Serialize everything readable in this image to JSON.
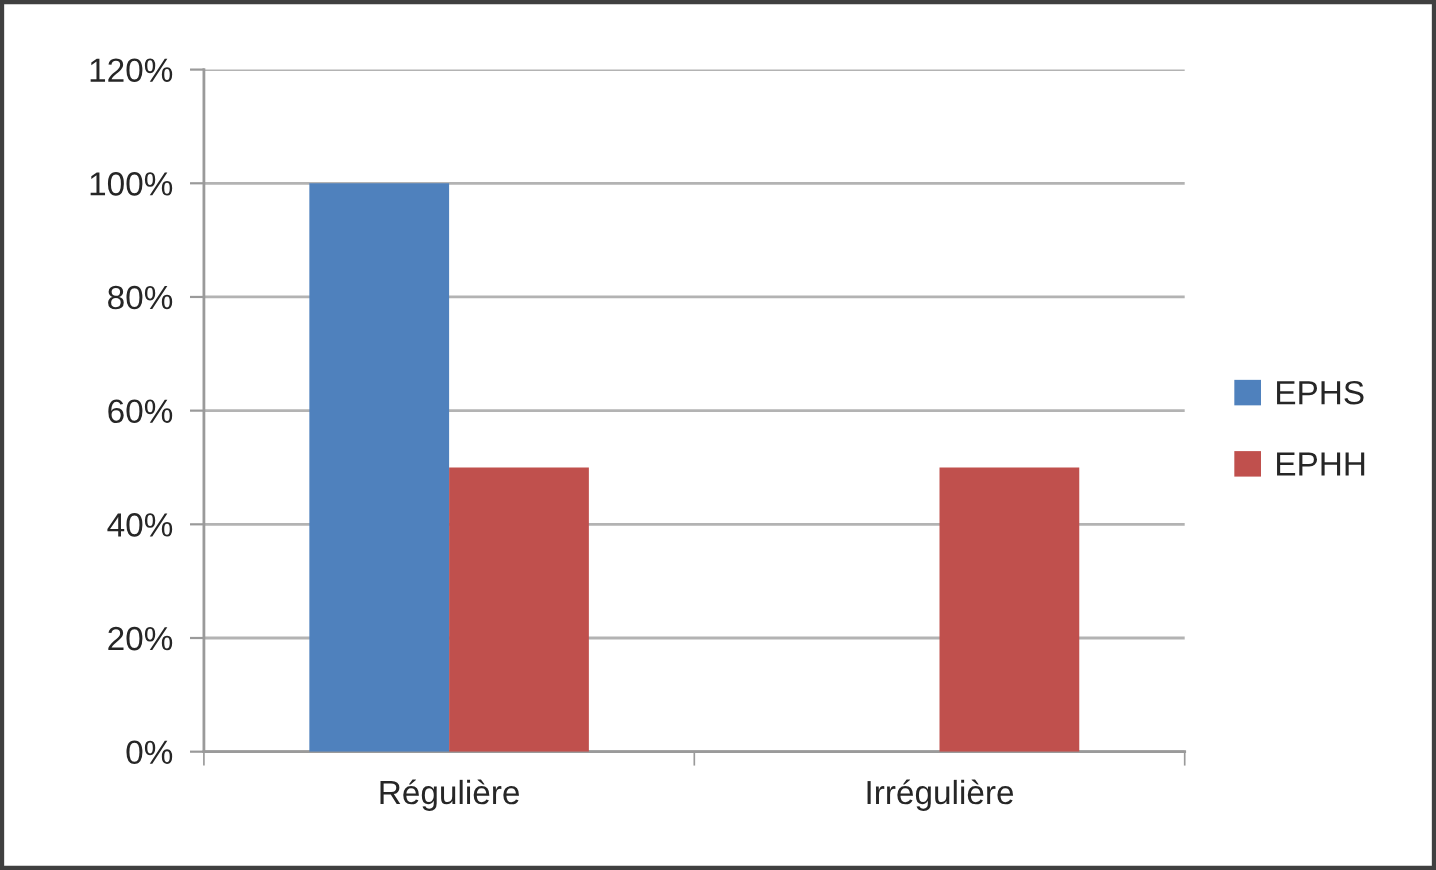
{
  "chart_data": {
    "type": "bar",
    "categories": [
      "Régulière",
      "Irrégulière"
    ],
    "series": [
      {
        "name": "EPHS",
        "color": "#4f81bd",
        "values": [
          100,
          0
        ]
      },
      {
        "name": "EPHH",
        "color": "#c0504d",
        "values": [
          50,
          50
        ]
      }
    ],
    "ylim": [
      0,
      120
    ],
    "yticks": [
      {
        "value": 0,
        "label": "0%"
      },
      {
        "value": 20,
        "label": "20%"
      },
      {
        "value": 40,
        "label": "40%"
      },
      {
        "value": 60,
        "label": "60%"
      },
      {
        "value": 80,
        "label": "80%"
      },
      {
        "value": 100,
        "label": "100%"
      },
      {
        "value": 120,
        "label": "120%"
      }
    ],
    "grid": "y",
    "legend": "right"
  }
}
